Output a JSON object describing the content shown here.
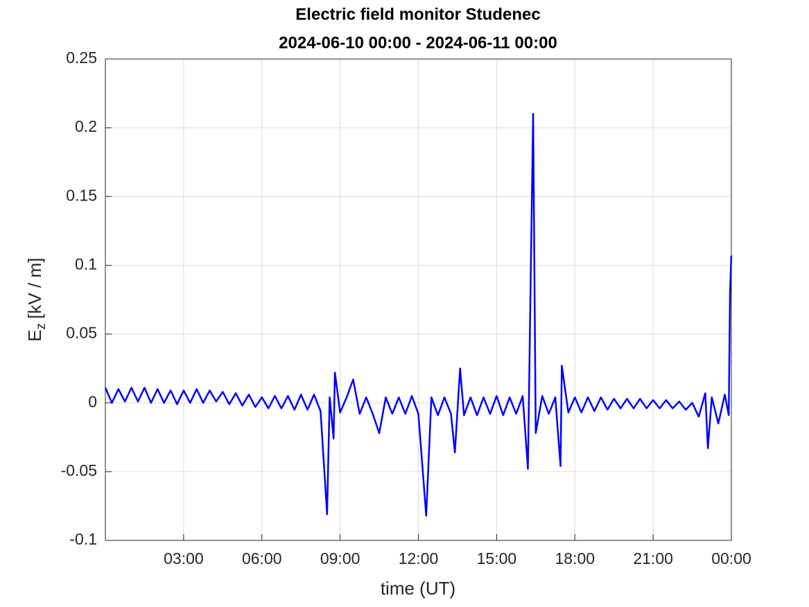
{
  "chart_data": {
    "type": "line",
    "title": "Electric field monitor Studenec",
    "subtitle": "2024-06-10 00:00 - 2024-06-11 00:00",
    "xlabel": "time (UT)",
    "ylabel": {
      "symbol": "E",
      "subscript": "z",
      "unit": "[kV / m]"
    },
    "color": "#0000ff",
    "grid": true,
    "xlim": [
      0,
      24
    ],
    "xticks": [
      {
        "value": 3,
        "label": "03:00"
      },
      {
        "value": 6,
        "label": "06:00"
      },
      {
        "value": 9,
        "label": "09:00"
      },
      {
        "value": 12,
        "label": "12:00"
      },
      {
        "value": 15,
        "label": "15:00"
      },
      {
        "value": 18,
        "label": "18:00"
      },
      {
        "value": 21,
        "label": "21:00"
      },
      {
        "value": 24,
        "label": "00:00"
      }
    ],
    "ylim": [
      -0.1,
      0.25
    ],
    "yticks": [
      -0.1,
      -0.05,
      0,
      0.05,
      0.1,
      0.15,
      0.2,
      0.25
    ],
    "x": [
      0,
      0.25,
      0.5,
      0.75,
      1,
      1.25,
      1.5,
      1.75,
      2,
      2.25,
      2.5,
      2.75,
      3,
      3.25,
      3.5,
      3.75,
      4,
      4.25,
      4.5,
      4.75,
      5,
      5.25,
      5.5,
      5.75,
      6,
      6.25,
      6.5,
      6.75,
      7,
      7.25,
      7.5,
      7.75,
      8,
      8.25,
      8.5,
      8.6,
      8.75,
      8.8,
      9,
      9.25,
      9.5,
      9.75,
      10,
      10.25,
      10.5,
      10.75,
      11,
      11.25,
      11.5,
      11.75,
      12,
      12.3,
      12.5,
      12.75,
      13,
      13.25,
      13.4,
      13.6,
      13.75,
      14,
      14.25,
      14.5,
      14.75,
      15,
      15.25,
      15.5,
      15.75,
      16,
      16.2,
      16.4,
      16.5,
      16.75,
      17,
      17.25,
      17.45,
      17.5,
      17.75,
      18,
      18.25,
      18.5,
      18.75,
      19,
      19.25,
      19.5,
      19.75,
      20,
      20.25,
      20.5,
      20.75,
      21,
      21.25,
      21.5,
      21.75,
      22,
      22.25,
      22.5,
      22.75,
      23,
      23.1,
      23.25,
      23.5,
      23.75,
      23.9,
      23.95,
      24
    ],
    "values": [
      0.011,
      0.0,
      0.01,
      0.001,
      0.011,
      0.001,
      0.011,
      0.0,
      0.01,
      0.0,
      0.009,
      -0.001,
      0.009,
      0.0,
      0.01,
      0.0,
      0.009,
      0.001,
      0.008,
      -0.001,
      0.007,
      -0.002,
      0.006,
      -0.003,
      0.004,
      -0.004,
      0.005,
      -0.004,
      0.005,
      -0.005,
      0.006,
      -0.005,
      0.006,
      -0.006,
      -0.081,
      0.004,
      -0.026,
      0.022,
      -0.007,
      0.004,
      0.017,
      -0.008,
      0.004,
      -0.008,
      -0.022,
      0.004,
      -0.008,
      0.004,
      -0.008,
      0.005,
      -0.008,
      -0.082,
      0.004,
      -0.009,
      0.004,
      -0.008,
      -0.036,
      0.025,
      -0.009,
      0.004,
      -0.009,
      0.004,
      -0.008,
      0.005,
      -0.009,
      0.004,
      -0.008,
      0.005,
      -0.048,
      0.21,
      -0.022,
      0.005,
      -0.008,
      0.004,
      -0.046,
      0.027,
      -0.007,
      0.004,
      -0.007,
      0.004,
      -0.006,
      0.004,
      -0.005,
      0.003,
      -0.004,
      0.003,
      -0.004,
      0.003,
      -0.004,
      0.002,
      -0.004,
      0.002,
      -0.004,
      0.001,
      -0.005,
      0.0,
      -0.01,
      0.007,
      -0.033,
      0.004,
      -0.015,
      0.006,
      -0.009,
      0.081,
      0.107
    ]
  }
}
